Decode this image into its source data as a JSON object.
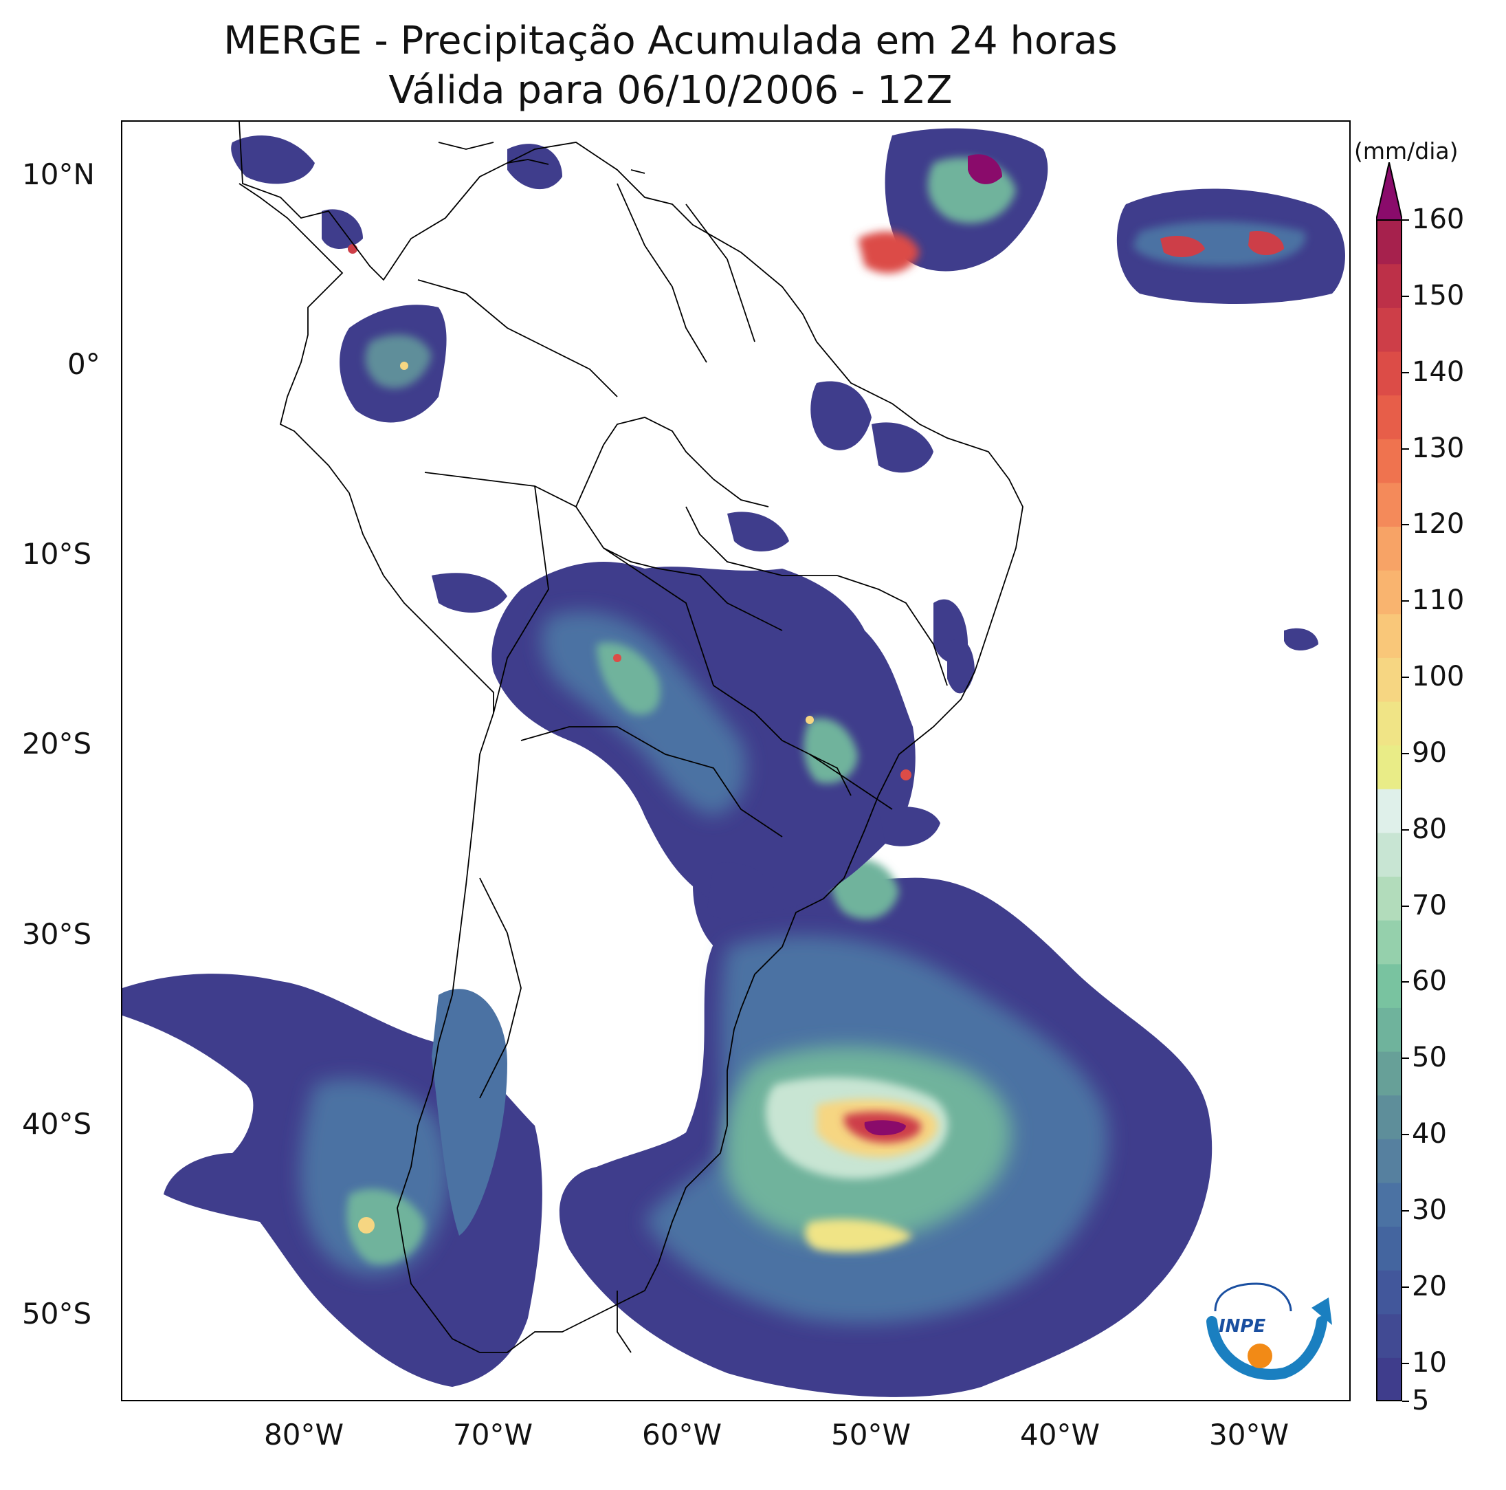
{
  "title": {
    "line1": "MERGE - Precipitação Acumulada em 24 horas",
    "line2": "Válida para 06/10/2006 - 12Z"
  },
  "axes": {
    "lat_ticks": [
      "10°N",
      "0°",
      "10°S",
      "20°S",
      "30°S",
      "40°S",
      "50°S"
    ],
    "lon_ticks": [
      "80°W",
      "70°W",
      "60°W",
      "50°W",
      "40°W",
      "30°W"
    ],
    "lat_values": [
      10,
      0,
      -10,
      -20,
      -30,
      -40,
      -50
    ],
    "lon_values": [
      -80,
      -70,
      -60,
      -50,
      -40,
      -30
    ],
    "extent": {
      "lon_min": -90,
      "lon_max": -25,
      "lat_min": -56,
      "lat_max": 13
    }
  },
  "colorbar": {
    "unit": "(mm/dia)",
    "tick_labels": [
      "5",
      "10",
      "20",
      "30",
      "40",
      "50",
      "60",
      "70",
      "80",
      "90",
      "100",
      "110",
      "120",
      "130",
      "140",
      "150",
      "160"
    ],
    "tick_values": [
      5,
      10,
      20,
      30,
      40,
      50,
      60,
      70,
      80,
      90,
      100,
      110,
      120,
      130,
      140,
      150,
      160
    ],
    "extend": "max",
    "colors": [
      "#3f3d8c",
      "#414a93",
      "#42579b",
      "#44659f",
      "#4b72a3",
      "#56809f",
      "#5e8e9a",
      "#67a098",
      "#6fb39c",
      "#79c3a0",
      "#95d0ac",
      "#b2dcbb",
      "#c8e5d3",
      "#dff0ea",
      "#e9ec87",
      "#f0e486",
      "#f6d682",
      "#f9c779",
      "#f9b46f",
      "#f7a366",
      "#f48a5a",
      "#ef734f",
      "#e75e49",
      "#dc4c47",
      "#cd3e48",
      "#bd3048",
      "#a6214d",
      "#8a0b6b"
    ]
  },
  "logo": {
    "text": "INPE"
  }
}
